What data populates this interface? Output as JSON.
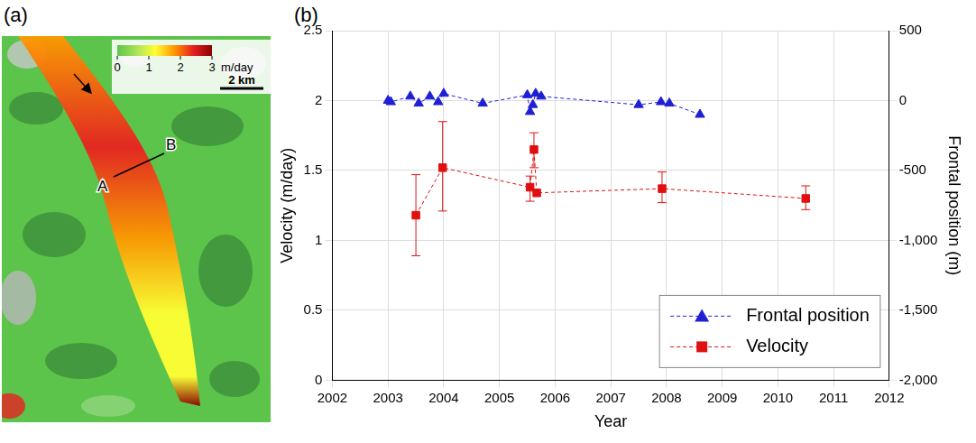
{
  "map_panel": {
    "panel_label": "(a)",
    "colorbar": {
      "range": [
        0,
        3
      ],
      "ticks": [
        0,
        1,
        2,
        3
      ],
      "unit": "m/day",
      "colors": [
        "#5cc44a",
        "#a8e35a",
        "#ffff33",
        "#ff9900",
        "#e82020",
        "#8b0000"
      ]
    },
    "scale_bar": "2 km",
    "profile": [
      "A",
      "B"
    ]
  },
  "chart_data": {
    "type": "line",
    "panel_label": "(b)",
    "xlabel": "Year",
    "ylabel": "Velocity (m/day)",
    "y2label": "Frontal position (m)",
    "xlim": [
      2002,
      2012
    ],
    "xticks": [
      2002,
      2003,
      2004,
      2005,
      2006,
      2007,
      2008,
      2009,
      2010,
      2011,
      2012
    ],
    "ylim": [
      0,
      2.5
    ],
    "yticks": [
      0,
      0.5,
      1,
      1.5,
      2,
      2.5
    ],
    "y2lim": [
      -2000,
      500
    ],
    "y2ticks": [
      {
        "value": -2000,
        "label": "-2,000"
      },
      {
        "value": -1500,
        "label": "-1,500"
      },
      {
        "value": -1000,
        "label": "-1,000"
      },
      -500,
      0,
      500
    ],
    "grid": true,
    "legend": "bottom-right",
    "series": [
      {
        "name": "Frontal position",
        "color": "#1f1fd6",
        "axis": "y2",
        "marker": "triangle",
        "line_style": "dashed",
        "x": [
          2003.0,
          2003.05,
          2003.4,
          2003.55,
          2003.75,
          2003.9,
          2004.0,
          2004.7,
          2005.5,
          2005.55,
          2005.6,
          2005.65,
          2005.75,
          2007.5,
          2007.9,
          2008.05,
          2008.6
        ],
        "values": [
          0,
          -10,
          30,
          -20,
          30,
          -10,
          50,
          -20,
          40,
          -80,
          -30,
          50,
          30,
          -30,
          -10,
          -20,
          -100
        ]
      },
      {
        "name": "Velocity",
        "color": "#e01010",
        "marker": "square",
        "line_style": "dashed",
        "x": [
          2003.5,
          2003.98,
          2005.55,
          2005.62,
          2005.67,
          2007.92,
          2010.5
        ],
        "values": [
          1.18,
          1.52,
          1.38,
          1.65,
          1.34,
          1.37,
          1.3
        ],
        "error_low": [
          0.89,
          1.21,
          1.28,
          1.52,
          null,
          1.27,
          1.22
        ],
        "error_high": [
          1.47,
          1.85,
          1.46,
          1.77,
          null,
          1.49,
          1.39
        ]
      }
    ]
  }
}
